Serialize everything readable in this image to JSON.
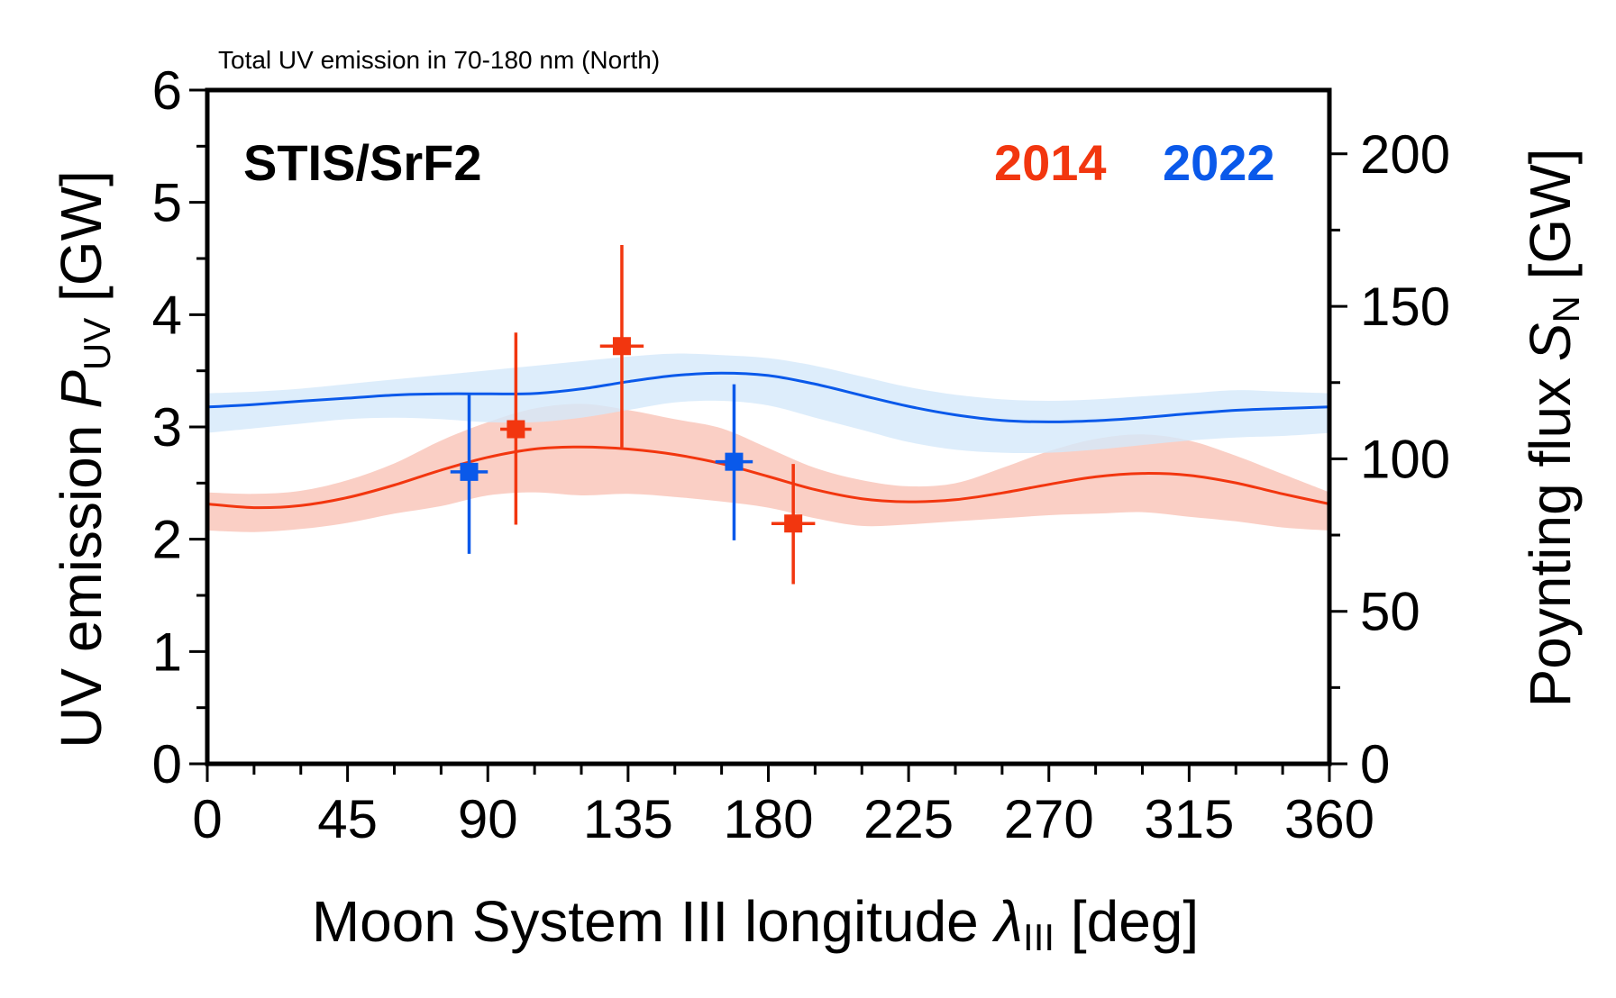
{
  "chart_data": {
    "type": "line",
    "title": "Total UV emission in 70-180 nm (North)",
    "annotation": "STIS/SrF2",
    "xlabel": {
      "main": "Moon System III longitude ",
      "symbol": "λ",
      "sub": "III",
      "unit": " [deg]"
    },
    "ylabel": {
      "main": "UV emission ",
      "symbol": "P",
      "sub": "UV",
      "unit": " [GW]"
    },
    "y2label": {
      "main": "Poynting flux ",
      "symbol": "S",
      "sub": "N",
      "unit": " [GW]"
    },
    "xlim": [
      0,
      360
    ],
    "ylim": [
      0,
      6
    ],
    "y2lim": [
      0,
      220.9
    ],
    "xticks": [
      0,
      45,
      90,
      135,
      180,
      225,
      270,
      315,
      360
    ],
    "xticks_minor_step": 15,
    "yticks": [
      0,
      1,
      2,
      3,
      4,
      5,
      6
    ],
    "yticks_minor_step": 0.5,
    "y2ticks": [
      0,
      50,
      100,
      150,
      200
    ],
    "y2ticks_minor_step": 25,
    "grid": false,
    "legend": "top-right",
    "series": [
      {
        "name": "2014",
        "color": "#f2360f",
        "band_color": "#f9c3b6",
        "curve_x": [
          0,
          15,
          30,
          45,
          60,
          75,
          90,
          105,
          120,
          135,
          150,
          165,
          180,
          195,
          210,
          225,
          240,
          255,
          270,
          285,
          300,
          315,
          330,
          345,
          360
        ],
        "curve_y2": [
          85.2,
          84.0,
          84.7,
          87.3,
          91.4,
          96.3,
          100.5,
          103.2,
          103.9,
          103.2,
          101.4,
          98.4,
          94.2,
          89.9,
          86.9,
          85.9,
          86.6,
          88.8,
          91.6,
          94.1,
          95.2,
          94.6,
          92.1,
          88.5,
          85.2
        ],
        "band_low": [
          76.5,
          76.0,
          77.0,
          79.0,
          82.0,
          84.5,
          88.0,
          89.0,
          88.0,
          88.5,
          87.5,
          86.0,
          84.0,
          80.5,
          78.0,
          78.5,
          79.5,
          80.5,
          81.5,
          82.0,
          82.5,
          81.0,
          79.5,
          77.5,
          76.5
        ],
        "band_high": [
          89.0,
          88.5,
          89.5,
          93.0,
          98.5,
          106.0,
          112.0,
          116.5,
          118.0,
          116.0,
          113.0,
          110.0,
          103.5,
          97.0,
          93.0,
          91.0,
          92.0,
          97.0,
          102.5,
          106.5,
          108.0,
          106.0,
          101.0,
          95.0,
          89.0
        ],
        "points": [
          {
            "x": 99,
            "y": 2.98,
            "xerr": 5,
            "ylo": 2.13,
            "yhi": 3.84
          },
          {
            "x": 133,
            "y": 3.72,
            "xerr": 7,
            "ylo": 2.82,
            "yhi": 4.62
          },
          {
            "x": 188,
            "y": 2.14,
            "xerr": 7,
            "ylo": 1.6,
            "yhi": 2.67
          }
        ]
      },
      {
        "name": "2022",
        "color": "#0a59ea",
        "band_color": "#d5e8fa",
        "curve_x": [
          0,
          15,
          30,
          45,
          60,
          75,
          90,
          105,
          120,
          135,
          150,
          165,
          180,
          195,
          210,
          225,
          240,
          255,
          270,
          285,
          300,
          315,
          330,
          345,
          360
        ],
        "curve_y2": [
          117.0,
          117.8,
          118.9,
          119.9,
          120.9,
          121.3,
          121.3,
          121.4,
          122.9,
          125.3,
          127.3,
          128.1,
          127.3,
          124.5,
          120.8,
          117.2,
          114.4,
          112.6,
          112.1,
          112.5,
          113.5,
          114.8,
          115.9,
          116.5,
          117.0
        ],
        "band_low": [
          108.5,
          110.0,
          111.5,
          113.0,
          113.5,
          113.0,
          112.0,
          112.0,
          113.5,
          116.0,
          118.5,
          119.0,
          117.5,
          113.5,
          109.5,
          105.5,
          103.0,
          102.0,
          102.0,
          103.0,
          104.5,
          106.0,
          107.0,
          107.5,
          108.5
        ],
        "band_high": [
          121.5,
          122.0,
          123.0,
          124.5,
          126.0,
          127.5,
          129.0,
          130.5,
          132.0,
          133.5,
          134.5,
          134.0,
          133.0,
          130.5,
          127.0,
          123.5,
          121.0,
          119.5,
          119.0,
          119.5,
          120.5,
          121.5,
          122.5,
          122.0,
          121.5
        ],
        "points": [
          {
            "x": 84,
            "y": 2.6,
            "xerr": 6,
            "ylo": 1.87,
            "yhi": 3.29
          },
          {
            "x": 169,
            "y": 2.69,
            "xerr": 6,
            "ylo": 1.99,
            "yhi": 3.38
          }
        ]
      }
    ]
  }
}
